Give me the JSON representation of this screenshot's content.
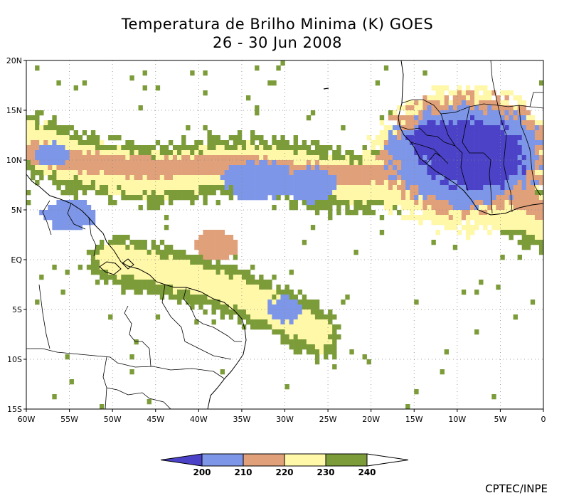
{
  "title_line1": "Temperatura de Brilho Minima (K) GOES",
  "title_line2": "26 - 30 Jun 2008",
  "credit": "CPTEC/INPE",
  "chart_data": {
    "type": "heatmap",
    "lon_range": [
      -60,
      0
    ],
    "lat_range": [
      -15,
      20
    ],
    "lat_ticks": [
      {
        "value": 20,
        "label": "20N"
      },
      {
        "value": 15,
        "label": "15N"
      },
      {
        "value": 10,
        "label": "10N"
      },
      {
        "value": 5,
        "label": "5N"
      },
      {
        "value": 0,
        "label": "EQ"
      },
      {
        "value": -5,
        "label": "5S"
      },
      {
        "value": -10,
        "label": "10S"
      },
      {
        "value": -15,
        "label": "15S"
      }
    ],
    "lon_ticks": [
      {
        "value": -60,
        "label": "60W"
      },
      {
        "value": -55,
        "label": "55W"
      },
      {
        "value": -50,
        "label": "50W"
      },
      {
        "value": -45,
        "label": "45W"
      },
      {
        "value": -40,
        "label": "40W"
      },
      {
        "value": -35,
        "label": "35W"
      },
      {
        "value": -30,
        "label": "30W"
      },
      {
        "value": -25,
        "label": "25W"
      },
      {
        "value": -20,
        "label": "20W"
      },
      {
        "value": -15,
        "label": "15W"
      },
      {
        "value": -10,
        "label": "10W"
      },
      {
        "value": -5,
        "label": "5W"
      },
      {
        "value": 0,
        "label": "0"
      }
    ],
    "grid": "dotted",
    "colorbar": {
      "ticks": [
        "200",
        "210",
        "220",
        "230",
        "240"
      ],
      "bins": [
        {
          "range": "<200",
          "color": "#4b42c8"
        },
        {
          "range": "200-210",
          "color": "#7d96e8"
        },
        {
          "range": "210-220",
          "color": "#e0a07a"
        },
        {
          "range": "220-230",
          "color": "#fff8a8"
        },
        {
          "range": "230-240",
          "color": "#7c9c3a"
        },
        {
          "range": ">240",
          "color": "#ffffff"
        }
      ]
    },
    "features": [
      {
        "kind": "itcz_band",
        "level": 4,
        "points": [
          [
            -60,
            12
          ],
          [
            -55,
            10
          ],
          [
            -50,
            9
          ],
          [
            -45,
            8.5
          ],
          [
            -40,
            9
          ],
          [
            -35,
            9.5
          ],
          [
            -30,
            9
          ],
          [
            -25,
            8
          ],
          [
            -20,
            8
          ],
          [
            -15,
            8.5
          ],
          [
            -10,
            8
          ],
          [
            -5,
            6
          ],
          [
            0,
            4
          ]
        ],
        "width": 6
      },
      {
        "kind": "itcz_band",
        "level": 3,
        "points": [
          [
            -60,
            12
          ],
          [
            -55,
            10
          ],
          [
            -50,
            9
          ],
          [
            -45,
            8.5
          ],
          [
            -40,
            9
          ],
          [
            -35,
            9.5
          ],
          [
            -30,
            9
          ],
          [
            -25,
            8
          ],
          [
            -20,
            8
          ],
          [
            -15,
            8.5
          ],
          [
            -10,
            8
          ],
          [
            -5,
            6
          ],
          [
            0,
            4
          ]
        ],
        "width": 4
      },
      {
        "kind": "itcz_band",
        "level": 2,
        "points": [
          [
            -60,
            11
          ],
          [
            -55,
            10
          ],
          [
            -50,
            9.5
          ],
          [
            -45,
            9
          ],
          [
            -40,
            9.5
          ],
          [
            -35,
            9.5
          ],
          [
            -30,
            9
          ],
          [
            -25,
            8.5
          ],
          [
            -20,
            8.5
          ],
          [
            -15,
            9
          ],
          [
            -10,
            9
          ],
          [
            -5,
            7
          ],
          [
            0,
            5
          ]
        ],
        "width": 2
      },
      {
        "kind": "ne_brazil_band",
        "level": 4,
        "points": [
          [
            -50,
            0
          ],
          [
            -45,
            -1
          ],
          [
            -40,
            -2
          ],
          [
            -35,
            -3.5
          ],
          [
            -30,
            -5.5
          ],
          [
            -26,
            -7.5
          ]
        ],
        "width": 5
      },
      {
        "kind": "ne_brazil_band",
        "level": 3,
        "points": [
          [
            -50,
            0
          ],
          [
            -45,
            -1
          ],
          [
            -40,
            -2
          ],
          [
            -35,
            -3.5
          ],
          [
            -30,
            -5.5
          ],
          [
            -26,
            -7.5
          ]
        ],
        "width": 3
      },
      {
        "kind": "cluster",
        "level": 1,
        "lon": -33,
        "lat": 8,
        "rx": 4,
        "ry": 2
      },
      {
        "kind": "cluster",
        "level": 1,
        "lon": -27,
        "lat": 7.5,
        "rx": 3,
        "ry": 1.8
      },
      {
        "kind": "cluster",
        "level": 1,
        "lon": -55,
        "lat": 4.5,
        "rx": 3,
        "ry": 1.5
      },
      {
        "kind": "cluster",
        "level": 1,
        "lon": -30,
        "lat": -5,
        "rx": 2,
        "ry": 1.3
      },
      {
        "kind": "cluster",
        "level": 1,
        "lon": -57,
        "lat": 10.5,
        "rx": 2,
        "ry": 1.2
      },
      {
        "kind": "cluster",
        "level": 2,
        "lon": -38,
        "lat": 1.5,
        "rx": 2.5,
        "ry": 1.5
      },
      {
        "kind": "west_africa_block",
        "level": 3,
        "lon": -9,
        "lat": 10,
        "rx": 11,
        "ry": 7
      },
      {
        "kind": "west_africa_block",
        "level": 2,
        "lon": -9,
        "lat": 10.5,
        "rx": 10,
        "ry": 6
      },
      {
        "kind": "west_africa_block",
        "level": 1,
        "lon": -9,
        "lat": 10.5,
        "rx": 9,
        "ry": 5
      },
      {
        "kind": "west_africa_block",
        "level": 0,
        "lon": -8,
        "lat": 10.5,
        "rx": 6,
        "ry": 3.5
      },
      {
        "kind": "west_africa_block",
        "level": 0,
        "lon": -13,
        "lat": 12,
        "rx": 2.5,
        "ry": 2
      }
    ]
  }
}
